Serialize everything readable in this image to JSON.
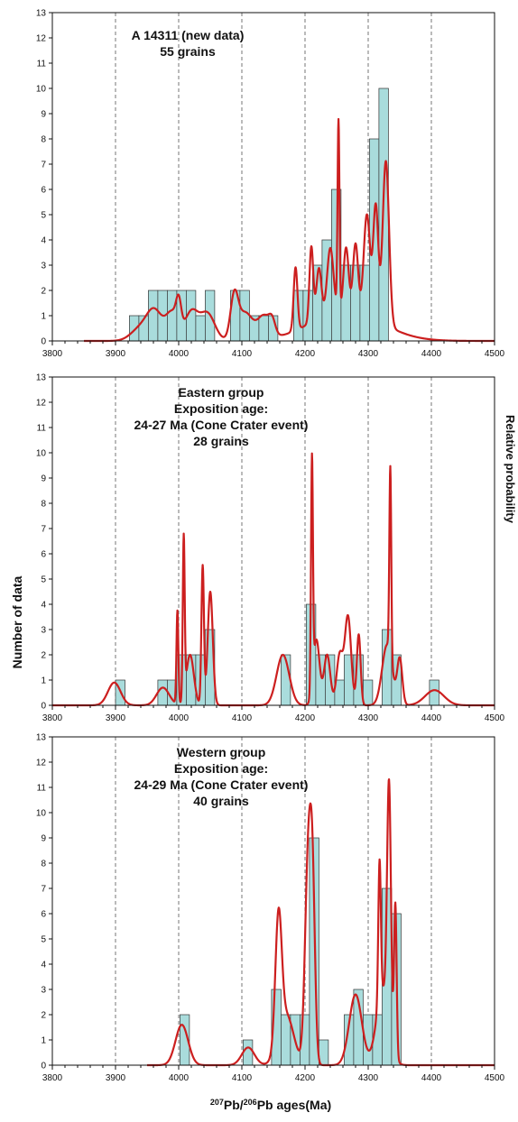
{
  "chart_data": [
    {
      "type": "bar",
      "panel": "top",
      "annotation_lines": [
        "A 14311 (new data)",
        "55 grains"
      ],
      "bin_width": 15,
      "bins": [
        {
          "x": 3922,
          "count": 1
        },
        {
          "x": 3937,
          "count": 1
        },
        {
          "x": 3952,
          "count": 2
        },
        {
          "x": 3967,
          "count": 2
        },
        {
          "x": 3982,
          "count": 2
        },
        {
          "x": 3997,
          "count": 2
        },
        {
          "x": 4012,
          "count": 2
        },
        {
          "x": 4027,
          "count": 1
        },
        {
          "x": 4042,
          "count": 2
        },
        {
          "x": 4082,
          "count": 2
        },
        {
          "x": 4097,
          "count": 2
        },
        {
          "x": 4112,
          "count": 1
        },
        {
          "x": 4127,
          "count": 1
        },
        {
          "x": 4142,
          "count": 1
        },
        {
          "x": 4182,
          "count": 2
        },
        {
          "x": 4197,
          "count": 2
        },
        {
          "x": 4212,
          "count": 3
        },
        {
          "x": 4227,
          "count": 4
        },
        {
          "x": 4242,
          "count": 6
        },
        {
          "x": 4257,
          "count": 3
        },
        {
          "x": 4272,
          "count": 3
        },
        {
          "x": 4287,
          "count": 3
        },
        {
          "x": 4302,
          "count": 8
        },
        {
          "x": 4317,
          "count": 10
        }
      ],
      "probability_curve": {
        "base": [
          3850,
          4500
        ],
        "components": [
          [
            3940,
            15,
            0.5
          ],
          [
            3962,
            12,
            1.1
          ],
          [
            3990,
            10,
            1.1
          ],
          [
            4000,
            4,
            1.0
          ],
          [
            4020,
            10,
            1.1
          ],
          [
            4045,
            12,
            1.1
          ],
          [
            4088,
            6,
            1.6
          ],
          [
            4105,
            12,
            1.1
          ],
          [
            4135,
            10,
            0.9
          ],
          [
            4148,
            5,
            0.5
          ],
          [
            4185,
            3,
            2.5
          ],
          [
            4210,
            3,
            3.0
          ],
          [
            4222,
            4,
            2.0
          ],
          [
            4240,
            5,
            2.6
          ],
          [
            4253,
            1.5,
            7.5
          ],
          [
            4265,
            4,
            2.5
          ],
          [
            4280,
            4,
            2.7
          ],
          [
            4298,
            5,
            4.0
          ],
          [
            4312,
            4,
            4.5
          ],
          [
            4328,
            5,
            6.5
          ],
          [
            4265,
            55,
            1.2
          ]
        ]
      },
      "xlim": [
        3800,
        4500
      ],
      "ylim": [
        0,
        13
      ],
      "x_ticks": [
        3800,
        3900,
        4000,
        4100,
        4200,
        4300,
        4400,
        4500
      ],
      "y_ticks": [
        0,
        1,
        2,
        3,
        4,
        5,
        6,
        7,
        8,
        9,
        10,
        11,
        12,
        13
      ],
      "grid_x": [
        3900,
        4000,
        4100,
        4200,
        4300,
        4400
      ]
    },
    {
      "type": "bar",
      "panel": "middle",
      "annotation_lines": [
        "Eastern group",
        "Exposition age:",
        "24-27 Ma (Cone Crater event)",
        "28 grains"
      ],
      "bin_width": 15,
      "bins": [
        {
          "x": 3900,
          "count": 1
        },
        {
          "x": 3967,
          "count": 1
        },
        {
          "x": 3982,
          "count": 1
        },
        {
          "x": 3997,
          "count": 2
        },
        {
          "x": 4012,
          "count": 2
        },
        {
          "x": 4027,
          "count": 2
        },
        {
          "x": 4042,
          "count": 3
        },
        {
          "x": 4162,
          "count": 2
        },
        {
          "x": 4202,
          "count": 4
        },
        {
          "x": 4217,
          "count": 2
        },
        {
          "x": 4232,
          "count": 2
        },
        {
          "x": 4247,
          "count": 1
        },
        {
          "x": 4262,
          "count": 2
        },
        {
          "x": 4277,
          "count": 2
        },
        {
          "x": 4292,
          "count": 1
        },
        {
          "x": 4322,
          "count": 3
        },
        {
          "x": 4337,
          "count": 2
        },
        {
          "x": 4397,
          "count": 1
        }
      ],
      "probability_curve": {
        "base": [
          3800,
          4500
        ],
        "components": [
          [
            3898,
            10,
            0.9
          ],
          [
            3975,
            10,
            0.7
          ],
          [
            3998,
            1.5,
            3.7
          ],
          [
            4008,
            1.5,
            6.3
          ],
          [
            4018,
            6,
            2.0
          ],
          [
            4038,
            2,
            5.5
          ],
          [
            4050,
            4,
            4.5
          ],
          [
            4165,
            10,
            2.0
          ],
          [
            4211,
            1.5,
            9.0
          ],
          [
            4218,
            5,
            2.6
          ],
          [
            4235,
            5,
            2.0
          ],
          [
            4255,
            5,
            2.0
          ],
          [
            4268,
            5,
            3.5
          ],
          [
            4285,
            3,
            2.8
          ],
          [
            4335,
            1.5,
            7.5
          ],
          [
            4330,
            8,
            2.4
          ],
          [
            4350,
            4,
            1.8
          ],
          [
            4405,
            15,
            0.6
          ]
        ]
      },
      "xlim": [
        3800,
        4500
      ],
      "ylim": [
        0,
        13
      ],
      "x_ticks": [
        3800,
        3900,
        4000,
        4100,
        4200,
        4300,
        4400,
        4500
      ],
      "y_ticks": [
        0,
        1,
        2,
        3,
        4,
        5,
        6,
        7,
        8,
        9,
        10,
        11,
        12,
        13
      ],
      "grid_x": [
        3900,
        4000,
        4100,
        4200,
        4300,
        4400
      ]
    },
    {
      "type": "bar",
      "panel": "bottom",
      "annotation_lines": [
        "Western group",
        "Exposition age:",
        "24-29 Ma (Cone Crater event)",
        "40 grains"
      ],
      "bin_width": 15,
      "bins": [
        {
          "x": 4002,
          "count": 2
        },
        {
          "x": 4102,
          "count": 1
        },
        {
          "x": 4147,
          "count": 3
        },
        {
          "x": 4162,
          "count": 2
        },
        {
          "x": 4177,
          "count": 2
        },
        {
          "x": 4192,
          "count": 2
        },
        {
          "x": 4207,
          "count": 9
        },
        {
          "x": 4222,
          "count": 1
        },
        {
          "x": 4262,
          "count": 2
        },
        {
          "x": 4277,
          "count": 3
        },
        {
          "x": 4292,
          "count": 2
        },
        {
          "x": 4307,
          "count": 2
        },
        {
          "x": 4322,
          "count": 7
        },
        {
          "x": 4337,
          "count": 6
        }
      ],
      "probability_curve": {
        "base": [
          3950,
          4500
        ],
        "components": [
          [
            4005,
            10,
            1.6
          ],
          [
            4110,
            10,
            0.7
          ],
          [
            4158,
            5,
            5.0
          ],
          [
            4170,
            12,
            2.0
          ],
          [
            4205,
            5,
            8.0
          ],
          [
            4212,
            4,
            6.0
          ],
          [
            4280,
            10,
            2.8
          ],
          [
            4318,
            2,
            5.5
          ],
          [
            4333,
            3,
            9.5
          ],
          [
            4343,
            2,
            6.0
          ],
          [
            4323,
            10,
            3.0
          ]
        ]
      },
      "xlim": [
        3800,
        4500
      ],
      "ylim": [
        0,
        13
      ],
      "x_ticks": [
        3800,
        3900,
        4000,
        4100,
        4200,
        4300,
        4400,
        4500
      ],
      "y_ticks": [
        0,
        1,
        2,
        3,
        4,
        5,
        6,
        7,
        8,
        9,
        10,
        11,
        12,
        13
      ],
      "grid_x": [
        3900,
        4000,
        4100,
        4200,
        4300,
        4400
      ]
    }
  ],
  "axis_titles": {
    "y_left": "Number of data",
    "y_right": "Relative probability",
    "x_sup1": "207",
    "x_mid": "Pb/",
    "x_sup2": "206",
    "x_tail": "Pb ages(Ma)"
  },
  "colors": {
    "bar_fill": "#a9dcdc",
    "bar_stroke": "#333333",
    "curve": "#cc1f1f",
    "grid": "#555555",
    "frame": "#111111"
  }
}
